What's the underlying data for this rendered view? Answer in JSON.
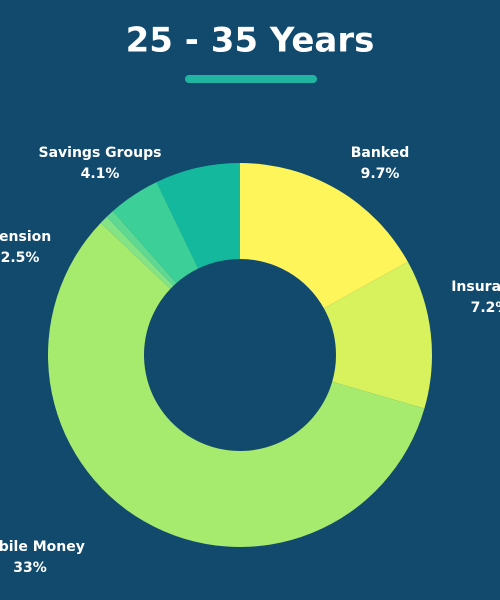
{
  "chart_data": {
    "type": "donut",
    "title": "25 - 35 Years",
    "categories": [
      "Banked",
      "Insurance",
      "Mobile Money",
      null,
      null,
      "Pension",
      "Savings Groups"
    ],
    "values": [
      9.7,
      7.2,
      33,
      0.4,
      0.4,
      2.5,
      4.1
    ],
    "value_labels": [
      "9.7%",
      "7.2%",
      "33%",
      null,
      null,
      "2.5%",
      "4.1%"
    ],
    "colors": [
      "#fdf55a",
      "#d7f25d",
      "#a6eb6e",
      "#84e385",
      "#5fd992",
      "#3ccf98",
      "#14b99d"
    ]
  }
}
